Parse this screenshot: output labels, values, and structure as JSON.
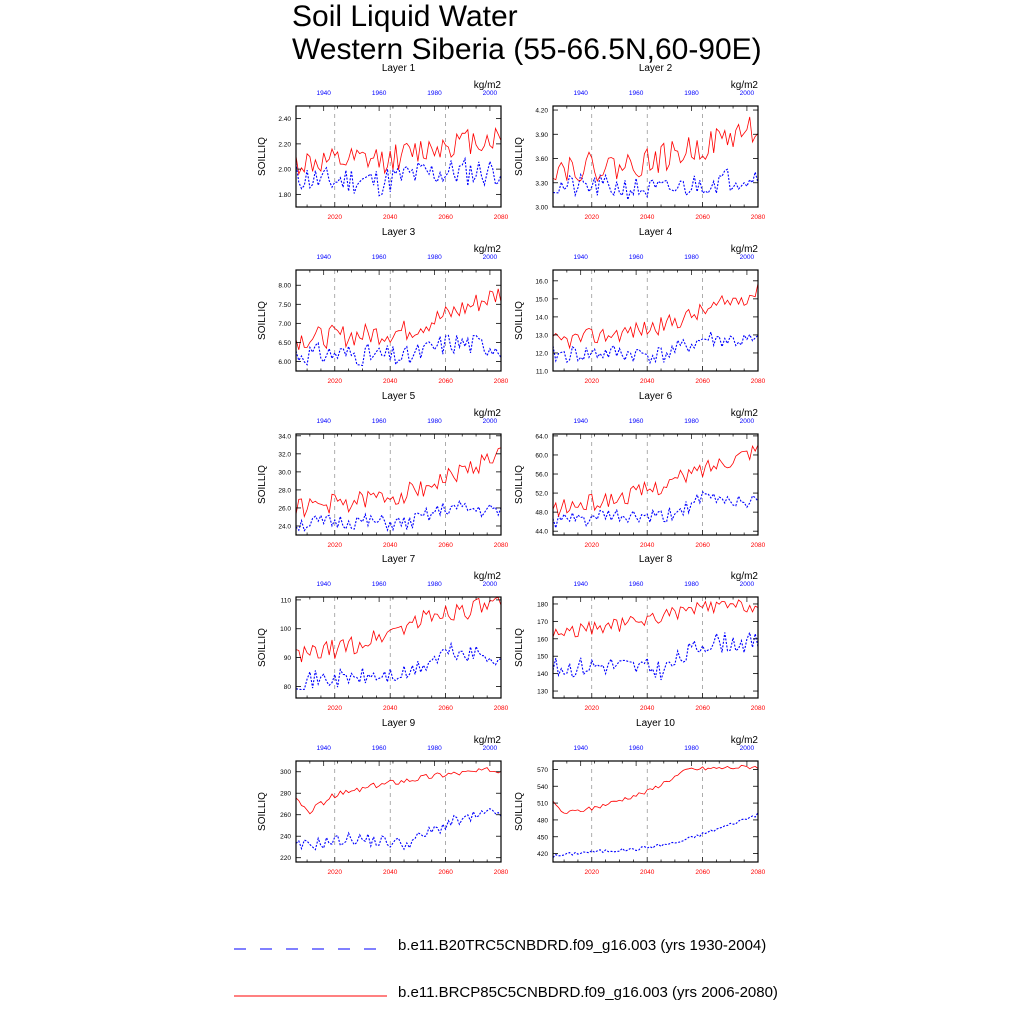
{
  "title_line1": "Soil Liquid Water",
  "title_line2": "Western Siberia (55-66.5N,60-90E)",
  "units": "kg/m2",
  "ylabel": "SOILLIQ",
  "colors": {
    "historical": "#0000ff",
    "future": "#ff0000",
    "grid": "#777777"
  },
  "legend": [
    {
      "label": "b.e11.B20TRC5CNBDRD.f09_g16.003 (yrs 1930-2004)",
      "color": "#0000ff",
      "style": "dashed"
    },
    {
      "label": "b.e11.BRCP85C5CNBDRD.f09_g16.003 (yrs 2006-2080)",
      "color": "#ff0000",
      "style": "solid"
    }
  ],
  "chart_data": [
    {
      "type": "line",
      "title": "Layer 1",
      "ylim": [
        1.7,
        2.5
      ],
      "yticks": [
        "1.80",
        "2.00",
        "2.20",
        "2.40"
      ],
      "ytick_vals": [
        1.8,
        2.0,
        2.2,
        2.4
      ],
      "x_top": {
        "label_values": [
          "1940",
          "1960",
          "1980",
          "2000"
        ],
        "ticks": [
          1940,
          1960,
          1980,
          2000
        ],
        "range": [
          1930,
          2004
        ]
      },
      "x_bottom": {
        "label_values": [
          "2020",
          "2040",
          "2060",
          "2080"
        ],
        "ticks": [
          2020,
          2040,
          2060,
          2080
        ],
        "range": [
          2006,
          2080
        ]
      },
      "series": [
        {
          "key": "historical",
          "anchors": [
            [
              1930,
              1.95
            ],
            [
              1940,
              1.9
            ],
            [
              1950,
              1.92
            ],
            [
              1960,
              1.9
            ],
            [
              1970,
              1.95
            ],
            [
              1980,
              1.97
            ],
            [
              1990,
              1.98
            ],
            [
              2000,
              1.98
            ],
            [
              2004,
              2.0
            ]
          ],
          "amp": 0.12,
          "seed": 11
        },
        {
          "key": "future",
          "anchors": [
            [
              2006,
              2.05
            ],
            [
              2020,
              2.05
            ],
            [
              2040,
              2.08
            ],
            [
              2060,
              2.2
            ],
            [
              2080,
              2.25
            ]
          ],
          "amp": 0.11,
          "seed": 12
        }
      ]
    },
    {
      "type": "line",
      "title": "Layer 2",
      "ylim": [
        3.0,
        4.25
      ],
      "yticks": [
        "3.00",
        "3.30",
        "3.60",
        "3.90",
        "4.20"
      ],
      "ytick_vals": [
        3.0,
        3.3,
        3.6,
        3.9,
        4.2
      ],
      "x_top": {
        "label_values": [
          "1940",
          "1960",
          "1980",
          "2000"
        ],
        "ticks": [
          1940,
          1960,
          1980,
          2000
        ],
        "range": [
          1930,
          2004
        ]
      },
      "x_bottom": {
        "label_values": [
          "2020",
          "2040",
          "2060",
          "2080"
        ],
        "ticks": [
          2020,
          2040,
          2060,
          2080
        ],
        "range": [
          2006,
          2080
        ]
      },
      "series": [
        {
          "key": "historical",
          "anchors": [
            [
              1930,
              3.25
            ],
            [
              1950,
              3.25
            ],
            [
              1970,
              3.2
            ],
            [
              1985,
              3.3
            ],
            [
              2004,
              3.4
            ]
          ],
          "amp": 0.15,
          "seed": 21
        },
        {
          "key": "future",
          "anchors": [
            [
              2006,
              3.5
            ],
            [
              2030,
              3.5
            ],
            [
              2045,
              3.6
            ],
            [
              2060,
              3.75
            ],
            [
              2080,
              4.0
            ]
          ],
          "amp": 0.18,
          "seed": 22
        }
      ]
    },
    {
      "type": "line",
      "title": "Layer 3",
      "ylim": [
        5.75,
        8.4
      ],
      "yticks": [
        "6.00",
        "6.50",
        "7.00",
        "7.50",
        "8.00"
      ],
      "ytick_vals": [
        6.0,
        6.5,
        7.0,
        7.5,
        8.0
      ],
      "x_top": {
        "label_values": [
          "1940",
          "1960",
          "1980",
          "2000"
        ],
        "ticks": [
          1940,
          1960,
          1980,
          2000
        ],
        "range": [
          1930,
          2004
        ]
      },
      "x_bottom": {
        "label_values": [
          "2020",
          "2040",
          "2060",
          "2080"
        ],
        "ticks": [
          2020,
          2040,
          2060,
          2080
        ],
        "range": [
          2006,
          2080
        ]
      },
      "series": [
        {
          "key": "historical",
          "anchors": [
            [
              1930,
              6.2
            ],
            [
              1950,
              6.2
            ],
            [
              1970,
              6.1
            ],
            [
              1985,
              6.5
            ],
            [
              2004,
              6.4
            ]
          ],
          "amp": 0.3,
          "seed": 31
        },
        {
          "key": "future",
          "anchors": [
            [
              2006,
              6.6
            ],
            [
              2030,
              6.7
            ],
            [
              2045,
              6.8
            ],
            [
              2060,
              7.2
            ],
            [
              2080,
              7.8
            ]
          ],
          "amp": 0.3,
          "seed": 32
        }
      ]
    },
    {
      "type": "line",
      "title": "Layer 4",
      "ylim": [
        11.0,
        16.6
      ],
      "yticks": [
        "11.0",
        "12.0",
        "13.0",
        "14.0",
        "15.0",
        "16.0"
      ],
      "ytick_vals": [
        11,
        12,
        13,
        14,
        15,
        16
      ],
      "x_top": {
        "label_values": [
          "1940",
          "1960",
          "1980",
          "2000"
        ],
        "ticks": [
          1940,
          1960,
          1980,
          2000
        ],
        "range": [
          1930,
          2004
        ]
      },
      "x_bottom": {
        "label_values": [
          "2020",
          "2040",
          "2060",
          "2080"
        ],
        "ticks": [
          2020,
          2040,
          2060,
          2080
        ],
        "range": [
          2006,
          2080
        ]
      },
      "series": [
        {
          "key": "historical",
          "anchors": [
            [
              1930,
              11.9
            ],
            [
              1950,
              12.0
            ],
            [
              1970,
              11.9
            ],
            [
              1985,
              12.8
            ],
            [
              2004,
              12.6
            ]
          ],
          "amp": 0.5,
          "seed": 41
        },
        {
          "key": "future",
          "anchors": [
            [
              2006,
              12.6
            ],
            [
              2030,
              13.1
            ],
            [
              2045,
              13.5
            ],
            [
              2060,
              14.3
            ],
            [
              2080,
              15.4
            ]
          ],
          "amp": 0.5,
          "seed": 42
        }
      ]
    },
    {
      "type": "line",
      "title": "Layer 5",
      "ylim": [
        23.0,
        34.2
      ],
      "yticks": [
        "24.0",
        "26.0",
        "28.0",
        "30.0",
        "32.0",
        "34.0"
      ],
      "ytick_vals": [
        24,
        26,
        28,
        30,
        32,
        34
      ],
      "x_top": {
        "label_values": [
          "1940",
          "1960",
          "1980",
          "2000"
        ],
        "ticks": [
          1940,
          1960,
          1980,
          2000
        ],
        "range": [
          1930,
          2004
        ]
      },
      "x_bottom": {
        "label_values": [
          "2020",
          "2040",
          "2060",
          "2080"
        ],
        "ticks": [
          2020,
          2040,
          2060,
          2080
        ],
        "range": [
          2006,
          2080
        ]
      },
      "series": [
        {
          "key": "historical",
          "anchors": [
            [
              1930,
              24.2
            ],
            [
              1950,
              24.5
            ],
            [
              1970,
              24.2
            ],
            [
              1985,
              26.0
            ],
            [
              2004,
              25.6
            ]
          ],
          "amp": 0.9,
          "seed": 51
        },
        {
          "key": "future",
          "anchors": [
            [
              2006,
              26.0
            ],
            [
              2030,
              26.8
            ],
            [
              2045,
              27.6
            ],
            [
              2060,
              29.2
            ],
            [
              2080,
              32.0
            ]
          ],
          "amp": 1.1,
          "seed": 52
        }
      ]
    },
    {
      "type": "line",
      "title": "Layer 6",
      "ylim": [
        43.2,
        64.4
      ],
      "yticks": [
        "44.0",
        "48.0",
        "52.0",
        "56.0",
        "60.0",
        "64.0"
      ],
      "ytick_vals": [
        44,
        48,
        52,
        56,
        60,
        64
      ],
      "x_top": {
        "label_values": [
          "1940",
          "1960",
          "1980",
          "2000"
        ],
        "ticks": [
          1940,
          1960,
          1980,
          2000
        ],
        "range": [
          1930,
          2004
        ]
      },
      "x_bottom": {
        "label_values": [
          "2020",
          "2040",
          "2060",
          "2080"
        ],
        "ticks": [
          2020,
          2040,
          2060,
          2080
        ],
        "range": [
          2006,
          2080
        ]
      },
      "series": [
        {
          "key": "historical",
          "anchors": [
            [
              1930,
              46.0
            ],
            [
              1950,
              47.0
            ],
            [
              1970,
              46.8
            ],
            [
              1985,
              51.0
            ],
            [
              2004,
              50.0
            ]
          ],
          "amp": 1.6,
          "seed": 61
        },
        {
          "key": "future",
          "anchors": [
            [
              2006,
              48.5
            ],
            [
              2030,
              51.0
            ],
            [
              2045,
              53.5
            ],
            [
              2060,
              57.0
            ],
            [
              2080,
              61.5
            ]
          ],
          "amp": 1.8,
          "seed": 62
        }
      ]
    },
    {
      "type": "line",
      "title": "Layer 7",
      "ylim": [
        76,
        111
      ],
      "yticks": [
        "80",
        "90",
        "100",
        "110"
      ],
      "ytick_vals": [
        80,
        90,
        100,
        110
      ],
      "x_top": {
        "label_values": [
          "1940",
          "1960",
          "1980",
          "2000"
        ],
        "ticks": [
          1940,
          1960,
          1980,
          2000
        ],
        "range": [
          1930,
          2004
        ]
      },
      "x_bottom": {
        "label_values": [
          "2020",
          "2040",
          "2060",
          "2080"
        ],
        "ticks": [
          2020,
          2040,
          2060,
          2080
        ],
        "range": [
          2006,
          2080
        ]
      },
      "series": [
        {
          "key": "historical",
          "anchors": [
            [
              1930,
              82
            ],
            [
              1950,
              83
            ],
            [
              1970,
              84
            ],
            [
              1985,
              92
            ],
            [
              2004,
              90
            ]
          ],
          "amp": 3.2,
          "seed": 71
        },
        {
          "key": "future",
          "anchors": [
            [
              2006,
              90
            ],
            [
              2030,
              95
            ],
            [
              2045,
              101
            ],
            [
              2060,
              106
            ],
            [
              2080,
              108
            ]
          ],
          "amp": 3.5,
          "seed": 72
        }
      ]
    },
    {
      "type": "line",
      "title": "Layer 8",
      "ylim": [
        126,
        184
      ],
      "yticks": [
        "130",
        "140",
        "150",
        "160",
        "170",
        "180"
      ],
      "ytick_vals": [
        130,
        140,
        150,
        160,
        170,
        180
      ],
      "x_top": {
        "label_values": [
          "1940",
          "1960",
          "1980",
          "2000"
        ],
        "ticks": [
          1940,
          1960,
          1980,
          2000
        ],
        "range": [
          1930,
          2004
        ]
      },
      "x_bottom": {
        "label_values": [
          "2020",
          "2040",
          "2060",
          "2080"
        ],
        "ticks": [
          2020,
          2040,
          2060,
          2080
        ],
        "range": [
          2006,
          2080
        ]
      },
      "series": [
        {
          "key": "historical",
          "anchors": [
            [
              1930,
              143
            ],
            [
              1950,
              145
            ],
            [
              1970,
              142
            ],
            [
              1985,
              158
            ],
            [
              2004,
              158
            ]
          ],
          "amp": 6,
          "seed": 81
        },
        {
          "key": "future",
          "anchors": [
            [
              2006,
              163
            ],
            [
              2030,
              168
            ],
            [
              2045,
              173
            ],
            [
              2060,
              178
            ],
            [
              2080,
              179
            ]
          ],
          "amp": 4,
          "seed": 82
        }
      ]
    },
    {
      "type": "line",
      "title": "Layer 9",
      "ylim": [
        216,
        310
      ],
      "yticks": [
        "220",
        "240",
        "260",
        "280",
        "300"
      ],
      "ytick_vals": [
        220,
        240,
        260,
        280,
        300
      ],
      "x_top": {
        "label_values": [
          "1940",
          "1960",
          "1980",
          "2000"
        ],
        "ticks": [
          1940,
          1960,
          1980,
          2000
        ],
        "range": [
          1930,
          2004
        ]
      },
      "x_bottom": {
        "label_values": [
          "2020",
          "2040",
          "2060",
          "2080"
        ],
        "ticks": [
          2020,
          2040,
          2060,
          2080
        ],
        "range": [
          2006,
          2080
        ]
      },
      "series": [
        {
          "key": "historical",
          "anchors": [
            [
              1930,
              230
            ],
            [
              1950,
              238
            ],
            [
              1970,
              233
            ],
            [
              1985,
              252
            ],
            [
              2004,
              263
            ]
          ],
          "amp": 6,
          "seed": 91
        },
        {
          "key": "future",
          "anchors": [
            [
              2006,
              275
            ],
            [
              2010,
              262
            ],
            [
              2020,
              278
            ],
            [
              2040,
              290
            ],
            [
              2060,
              298
            ],
            [
              2080,
              302
            ]
          ],
          "amp": 3,
          "seed": 92
        }
      ]
    },
    {
      "type": "line",
      "title": "Layer 10",
      "ylim": [
        405,
        585
      ],
      "yticks": [
        "420",
        "450",
        "480",
        "510",
        "540",
        "570"
      ],
      "ytick_vals": [
        420,
        450,
        480,
        510,
        540,
        570
      ],
      "x_top": {
        "label_values": [
          "1940",
          "1960",
          "1980",
          "2000"
        ],
        "ticks": [
          1940,
          1960,
          1980,
          2000
        ],
        "range": [
          1930,
          2004
        ]
      },
      "x_bottom": {
        "label_values": [
          "2020",
          "2040",
          "2060",
          "2080"
        ],
        "ticks": [
          2020,
          2040,
          2060,
          2080
        ],
        "range": [
          2006,
          2080
        ]
      },
      "series": [
        {
          "key": "historical",
          "anchors": [
            [
              1930,
              415
            ],
            [
              1940,
              422
            ],
            [
              1960,
              428
            ],
            [
              1975,
              440
            ],
            [
              1990,
              465
            ],
            [
              2004,
              490
            ]
          ],
          "amp": 3,
          "seed": 101
        },
        {
          "key": "future",
          "anchors": [
            [
              2006,
              510
            ],
            [
              2010,
              492
            ],
            [
              2020,
              500
            ],
            [
              2040,
              530
            ],
            [
              2055,
              570
            ],
            [
              2080,
              575
            ]
          ],
          "amp": 4,
          "seed": 102
        }
      ]
    }
  ]
}
